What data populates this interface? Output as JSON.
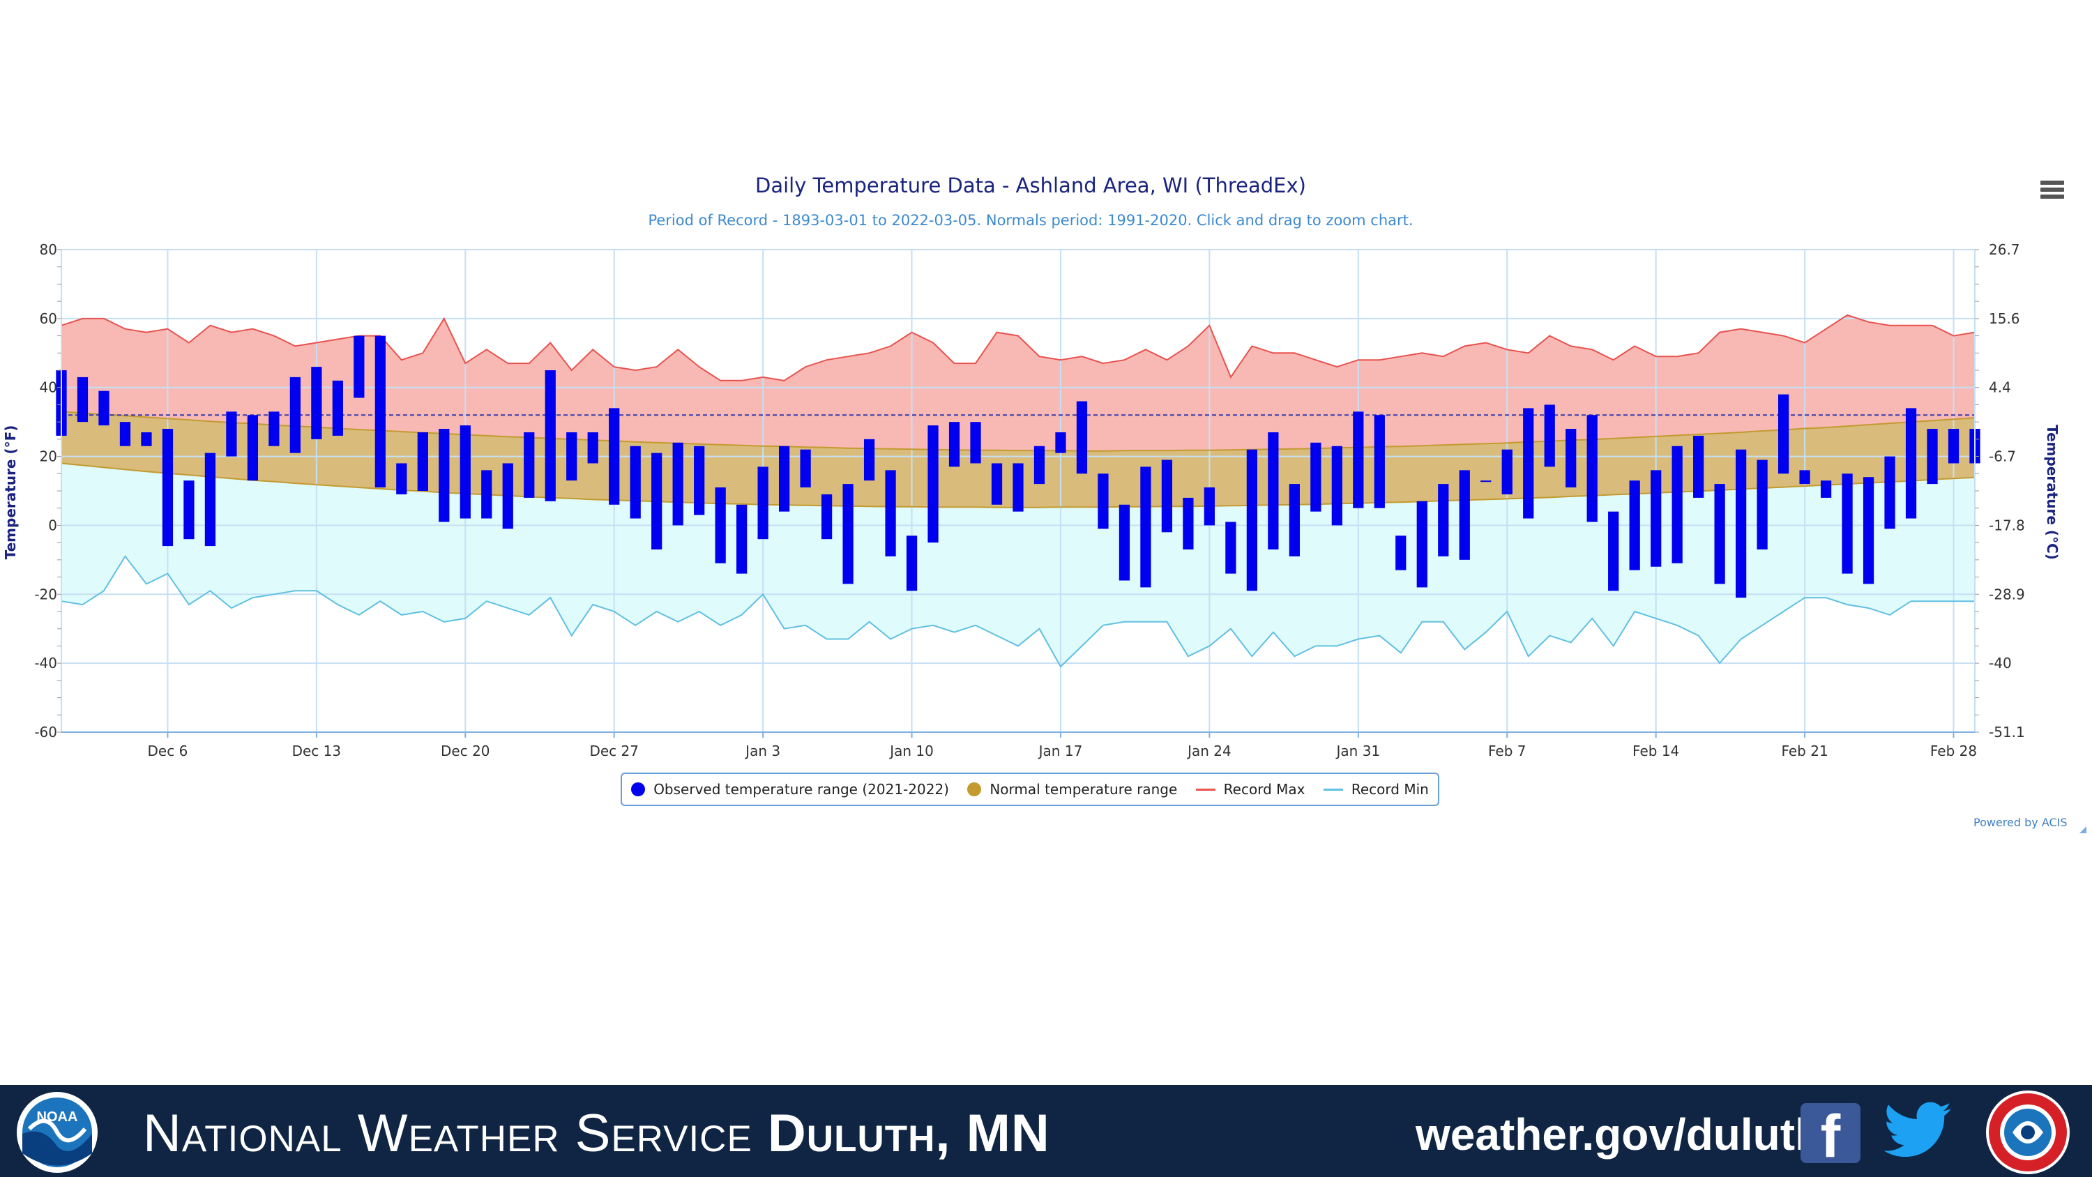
{
  "chart": {
    "title": "Daily Temperature Data - Ashland Area, WI (ThreadEx)",
    "subtitle": "Period of Record - 1893-03-01 to 2022-03-05. Normals period: 1991-2020. Click and drag to zoom chart.",
    "powered_by": "Powered by ACIS",
    "menu_icon": "hamburger-menu-icon"
  },
  "legend": {
    "observed": "Observed temperature range (2021-2022)",
    "normal": "Normal temperature range",
    "record_max": "Record Max",
    "record_min": "Record Min"
  },
  "colors": {
    "observed": "#0000ee",
    "normal_fill": "#d9bc7c",
    "normal_line": "#c39a2f",
    "record_max_line": "#e8524f",
    "record_max_fill": "#f8b9b4",
    "record_min_line": "#5fc0e0",
    "record_min_fill": "#e0fbfb",
    "freezing_line": "#3a3aaa",
    "axis_text": "#333333",
    "title": "#1a237e",
    "subtitle": "#3c8ad0"
  },
  "chart_data": {
    "type": "bar",
    "start_date": "Dec 1",
    "x_tick_labels": [
      "Dec 6",
      "Dec 13",
      "Dec 20",
      "Dec 27",
      "Jan 3",
      "Jan 10",
      "Jan 17",
      "Jan 24",
      "Jan 31",
      "Feb 7",
      "Feb 14",
      "Feb 21",
      "Feb 28"
    ],
    "x_tick_days": [
      "Dec 6",
      "Dec 13",
      "Dec 20",
      "Dec 27",
      "Jan 3",
      "Jan 10",
      "Jan 17",
      "Jan 24",
      "Jan 31",
      "Feb 7",
      "Feb 14",
      "Feb 21",
      "Feb 28"
    ],
    "ylabel_left": "Temperature (°F)",
    "ylabel_right": "Temperature (°C)",
    "ylim": [
      -60,
      80
    ],
    "y_ticks_left": [
      80,
      60,
      40,
      20,
      0,
      -20,
      -40,
      -60
    ],
    "y_ticks_right": [
      "26.7",
      "15.6",
      "4.4",
      "-6.7",
      "-17.8",
      "-28.9",
      "-40",
      "-51.1"
    ],
    "freezing_line": 32,
    "grid": true,
    "legend_position": "bottom-center",
    "dates": [
      "Dec 1",
      "Dec 2",
      "Dec 3",
      "Dec 4",
      "Dec 5",
      "Dec 6",
      "Dec 7",
      "Dec 8",
      "Dec 9",
      "Dec 10",
      "Dec 11",
      "Dec 12",
      "Dec 13",
      "Dec 14",
      "Dec 15",
      "Dec 16",
      "Dec 17",
      "Dec 18",
      "Dec 19",
      "Dec 20",
      "Dec 21",
      "Dec 22",
      "Dec 23",
      "Dec 24",
      "Dec 25",
      "Dec 26",
      "Dec 27",
      "Dec 28",
      "Dec 29",
      "Dec 30",
      "Dec 31",
      "Jan 1",
      "Jan 2",
      "Jan 3",
      "Jan 4",
      "Jan 5",
      "Jan 6",
      "Jan 7",
      "Jan 8",
      "Jan 9",
      "Jan 10",
      "Jan 11",
      "Jan 12",
      "Jan 13",
      "Jan 14",
      "Jan 15",
      "Jan 16",
      "Jan 17",
      "Jan 18",
      "Jan 19",
      "Jan 20",
      "Jan 21",
      "Jan 22",
      "Jan 23",
      "Jan 24",
      "Jan 25",
      "Jan 26",
      "Jan 27",
      "Jan 28",
      "Jan 29",
      "Jan 30",
      "Jan 31",
      "Feb 1",
      "Feb 2",
      "Feb 3",
      "Feb 4",
      "Feb 5",
      "Feb 6",
      "Feb 7",
      "Feb 8",
      "Feb 9",
      "Feb 10",
      "Feb 11",
      "Feb 12",
      "Feb 13",
      "Feb 14",
      "Feb 15",
      "Feb 16",
      "Feb 17",
      "Feb 18",
      "Feb 19",
      "Feb 20",
      "Feb 21",
      "Feb 22",
      "Feb 23",
      "Feb 24",
      "Feb 25",
      "Feb 26",
      "Feb 27",
      "Feb 28",
      "Mar 1"
    ],
    "observed_high": [
      45,
      43,
      39,
      30,
      27,
      28,
      13,
      21,
      33,
      32,
      33,
      43,
      46,
      42,
      55,
      55,
      18,
      27,
      28,
      29,
      16,
      18,
      27,
      45,
      27,
      27,
      34,
      23,
      21,
      24,
      23,
      11,
      6,
      17,
      23,
      22,
      9,
      12,
      25,
      16,
      -3,
      29,
      30,
      30,
      18,
      18,
      23,
      27,
      36,
      15,
      6,
      17,
      19,
      8,
      11,
      1,
      22,
      27,
      12,
      24,
      23,
      33,
      32,
      -3,
      7,
      12,
      16,
      13,
      22,
      34,
      35,
      28,
      32,
      4,
      13,
      16,
      23,
      26,
      12,
      22,
      19,
      38,
      16,
      13,
      15,
      14,
      20,
      34,
      28,
      28,
      28
    ],
    "observed_low": [
      26,
      30,
      29,
      23,
      23,
      -6,
      -4,
      -6,
      20,
      13,
      23,
      21,
      25,
      26,
      37,
      11,
      9,
      10,
      1,
      2,
      2,
      -1,
      8,
      7,
      13,
      18,
      6,
      2,
      -7,
      0,
      3,
      -11,
      -14,
      -4,
      4,
      11,
      -4,
      -17,
      13,
      -9,
      -19,
      -5,
      17,
      18,
      6,
      4,
      12,
      21,
      15,
      -1,
      -16,
      -18,
      -2,
      -7,
      0,
      -14,
      -19,
      -7,
      -9,
      4,
      0,
      5,
      5,
      -13,
      -18,
      -9,
      -10,
      13,
      9,
      2,
      17,
      11,
      1,
      -19,
      -13,
      -12,
      -11,
      8,
      -17,
      -21,
      -7,
      15,
      12,
      8,
      -14,
      -17,
      -1,
      2,
      12,
      18,
      18
    ],
    "normal_high": [
      33.0,
      32.6,
      32.2,
      31.8,
      31.4,
      31.0,
      30.6,
      30.2,
      29.8,
      29.5,
      29.1,
      28.8,
      28.5,
      28.1,
      27.8,
      27.5,
      27.2,
      26.9,
      26.6,
      26.3,
      26.0,
      25.7,
      25.5,
      25.2,
      25.0,
      24.7,
      24.5,
      24.2,
      24.0,
      23.8,
      23.6,
      23.4,
      23.2,
      23.0,
      22.9,
      22.7,
      22.6,
      22.4,
      22.3,
      22.2,
      22.1,
      22.0,
      21.9,
      21.8,
      21.8,
      21.7,
      21.7,
      21.7,
      21.6,
      21.6,
      21.7,
      21.7,
      21.7,
      21.8,
      21.8,
      21.9,
      22.0,
      22.1,
      22.2,
      22.3,
      22.5,
      22.6,
      22.8,
      22.9,
      23.1,
      23.3,
      23.5,
      23.7,
      23.9,
      24.2,
      24.4,
      24.7,
      24.9,
      25.2,
      25.5,
      25.8,
      26.1,
      26.4,
      26.7,
      27.0,
      27.4,
      27.7,
      28.1,
      28.4,
      28.8,
      29.2,
      29.6,
      30.0,
      30.4,
      30.8,
      31.2
    ],
    "normal_low": [
      18.0,
      17.4,
      16.8,
      16.2,
      15.6,
      15.1,
      14.6,
      14.1,
      13.6,
      13.1,
      12.7,
      12.2,
      11.8,
      11.4,
      11.0,
      10.6,
      10.2,
      9.9,
      9.5,
      9.2,
      8.9,
      8.6,
      8.3,
      8.0,
      7.8,
      7.5,
      7.3,
      7.1,
      6.9,
      6.7,
      6.5,
      6.3,
      6.2,
      6.0,
      5.9,
      5.8,
      5.7,
      5.6,
      5.5,
      5.4,
      5.4,
      5.3,
      5.3,
      5.3,
      5.2,
      5.2,
      5.2,
      5.3,
      5.3,
      5.3,
      5.4,
      5.4,
      5.5,
      5.5,
      5.6,
      5.7,
      5.8,
      5.9,
      6.0,
      6.1,
      6.3,
      6.4,
      6.6,
      6.7,
      6.9,
      7.1,
      7.3,
      7.5,
      7.7,
      7.9,
      8.1,
      8.4,
      8.6,
      8.9,
      9.1,
      9.4,
      9.7,
      9.9,
      10.2,
      10.5,
      10.8,
      11.1,
      11.4,
      11.7,
      12.0,
      12.3,
      12.6,
      12.9,
      13.3,
      13.6,
      13.9
    ],
    "record_max": [
      58,
      60,
      60,
      57,
      56,
      57,
      53,
      58,
      56,
      57,
      55,
      52,
      53,
      54,
      55,
      55,
      48,
      50,
      60,
      47,
      51,
      47,
      47,
      53,
      45,
      51,
      46,
      45,
      46,
      51,
      46,
      42,
      42,
      43,
      42,
      46,
      48,
      49,
      50,
      52,
      56,
      53,
      47,
      47,
      56,
      55,
      49,
      48,
      49,
      47,
      48,
      51,
      48,
      52,
      58,
      43,
      52,
      50,
      50,
      48,
      46,
      48,
      48,
      49,
      50,
      49,
      52,
      53,
      51,
      50,
      55,
      52,
      51,
      48,
      52,
      49,
      49,
      50,
      56,
      57,
      56,
      55,
      53,
      57,
      61,
      59,
      58,
      58,
      58,
      55,
      56
    ],
    "record_min": [
      -22,
      -23,
      -19,
      -9,
      -17,
      -14,
      -23,
      -19,
      -24,
      -21,
      -20,
      -19,
      -19,
      -23,
      -26,
      -22,
      -26,
      -25,
      -28,
      -27,
      -22,
      -24,
      -26,
      -21,
      -32,
      -23,
      -25,
      -29,
      -25,
      -28,
      -25,
      -29,
      -26,
      -20,
      -30,
      -29,
      -33,
      -33,
      -28,
      -33,
      -30,
      -29,
      -31,
      -29,
      -32,
      -35,
      -30,
      -41,
      -35,
      -29,
      -28,
      -28,
      -28,
      -38,
      -35,
      -30,
      -38,
      -31,
      -38,
      -35,
      -35,
      -33,
      -32,
      -37,
      -28,
      -28,
      -36,
      -31,
      -25,
      -38,
      -32,
      -34,
      -27,
      -35,
      -25,
      -27,
      -29,
      -32,
      -40,
      -33,
      -29,
      -25,
      -21,
      -21,
      -23,
      -24,
      -26,
      -22,
      -22,
      -22,
      -22
    ]
  },
  "footer": {
    "agency_light": "National Weather Service",
    "agency_bold": "Duluth, MN",
    "website": "weather.gov/duluth",
    "noaa_logo_text": "NOAA",
    "facebook_icon": "f"
  }
}
